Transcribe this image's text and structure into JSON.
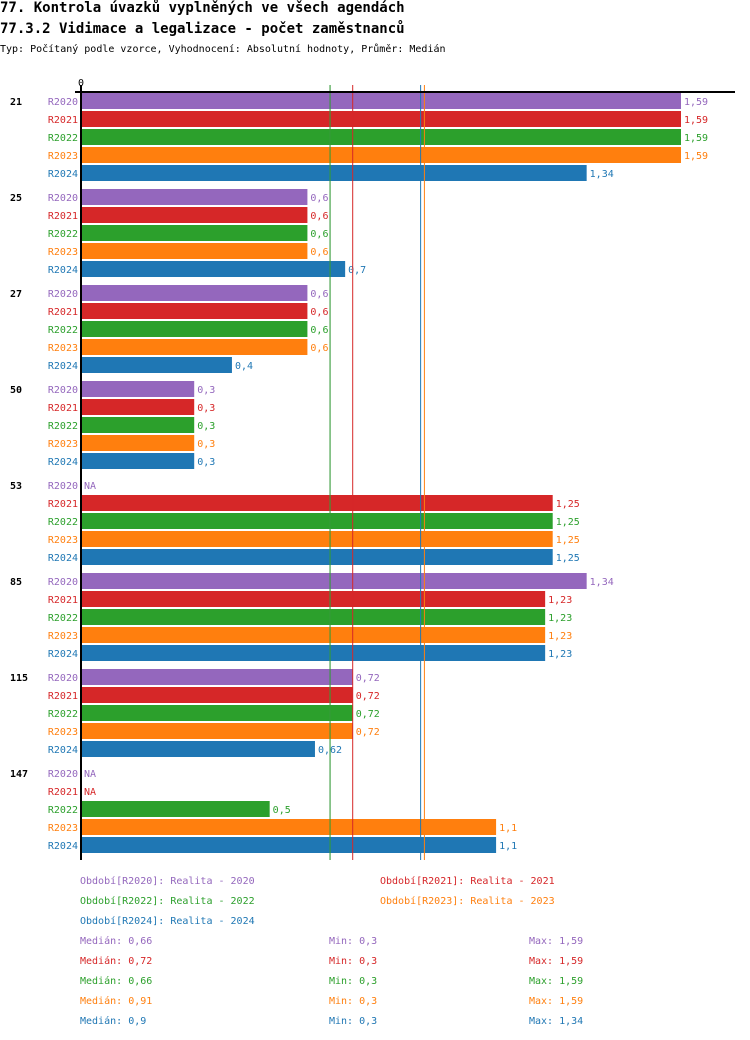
{
  "title": "77. Kontrola úvazků vyplněných ve všech agendách",
  "subtitle": "77.3.2 Vidimace a legalizace - počet zaměstnanců",
  "info": "Typ: Počítaný podle vzorce, Vyhodnocení: Absolutní hodnoty, Průměr: Medián",
  "chart_data": {
    "type": "bar",
    "orientation": "horizontal",
    "axis_tick": "0",
    "xlim": [
      0,
      1.59
    ],
    "categories": [
      "21",
      "25",
      "27",
      "50",
      "53",
      "85",
      "115",
      "147"
    ],
    "series": [
      {
        "name": "R2020",
        "color": "#9467bd",
        "values": [
          1.59,
          0.6,
          0.6,
          0.3,
          null,
          1.34,
          0.72,
          null
        ],
        "labels": [
          "1,59",
          "0,6",
          "0,6",
          "0,3",
          "NA",
          "1,34",
          "0,72",
          "NA"
        ]
      },
      {
        "name": "R2021",
        "color": "#d62728",
        "values": [
          1.59,
          0.6,
          0.6,
          0.3,
          1.25,
          1.23,
          0.72,
          null
        ],
        "labels": [
          "1,59",
          "0,6",
          "0,6",
          "0,3",
          "1,25",
          "1,23",
          "0,72",
          "NA"
        ]
      },
      {
        "name": "R2022",
        "color": "#2ca02c",
        "values": [
          1.59,
          0.6,
          0.6,
          0.3,
          1.25,
          1.23,
          0.72,
          0.5
        ],
        "labels": [
          "1,59",
          "0,6",
          "0,6",
          "0,3",
          "1,25",
          "1,23",
          "0,72",
          "0,5"
        ]
      },
      {
        "name": "R2023",
        "color": "#ff7f0e",
        "values": [
          1.59,
          0.6,
          0.6,
          0.3,
          1.25,
          1.23,
          0.72,
          1.1
        ],
        "labels": [
          "1,59",
          "0,6",
          "0,6",
          "0,3",
          "1,25",
          "1,23",
          "0,72",
          "1,1"
        ]
      },
      {
        "name": "R2024",
        "color": "#1f77b4",
        "values": [
          1.34,
          0.7,
          0.4,
          0.3,
          1.25,
          1.23,
          0.62,
          1.1
        ],
        "labels": [
          "1,34",
          "0,7",
          "0,4",
          "0,3",
          "1,25",
          "1,23",
          "0,62",
          "1,1"
        ]
      }
    ],
    "median_lines": [
      0.66,
      0.72,
      0.66,
      0.91,
      0.9
    ]
  },
  "legend": [
    {
      "key": "Období[R2020]:",
      "text": "Realita - 2020",
      "color": "#9467bd"
    },
    {
      "key": "Období[R2021]:",
      "text": "Realita - 2021",
      "color": "#d62728"
    },
    {
      "key": "Období[R2022]:",
      "text": "Realita - 2022",
      "color": "#2ca02c"
    },
    {
      "key": "Období[R2023]:",
      "text": "Realita - 2023",
      "color": "#ff7f0e"
    },
    {
      "key": "Období[R2024]:",
      "text": "Realita - 2024",
      "color": "#1f77b4"
    }
  ],
  "stats": [
    {
      "median_label": "Medián:",
      "median": "0,66",
      "min_label": "Min:",
      "min": "0,3",
      "max_label": "Max:",
      "max": "1,59",
      "color": "#9467bd"
    },
    {
      "median_label": "Medián:",
      "median": "0,72",
      "min_label": "Min:",
      "min": "0,3",
      "max_label": "Max:",
      "max": "1,59",
      "color": "#d62728"
    },
    {
      "median_label": "Medián:",
      "median": "0,66",
      "min_label": "Min:",
      "min": "0,3",
      "max_label": "Max:",
      "max": "1,59",
      "color": "#2ca02c"
    },
    {
      "median_label": "Medián:",
      "median": "0,91",
      "min_label": "Min:",
      "min": "0,3",
      "max_label": "Max:",
      "max": "1,59",
      "color": "#ff7f0e"
    },
    {
      "median_label": "Medián:",
      "median": "0,9",
      "min_label": "Min:",
      "min": "0,3",
      "max_label": "Max:",
      "max": "1,34",
      "color": "#1f77b4"
    }
  ]
}
